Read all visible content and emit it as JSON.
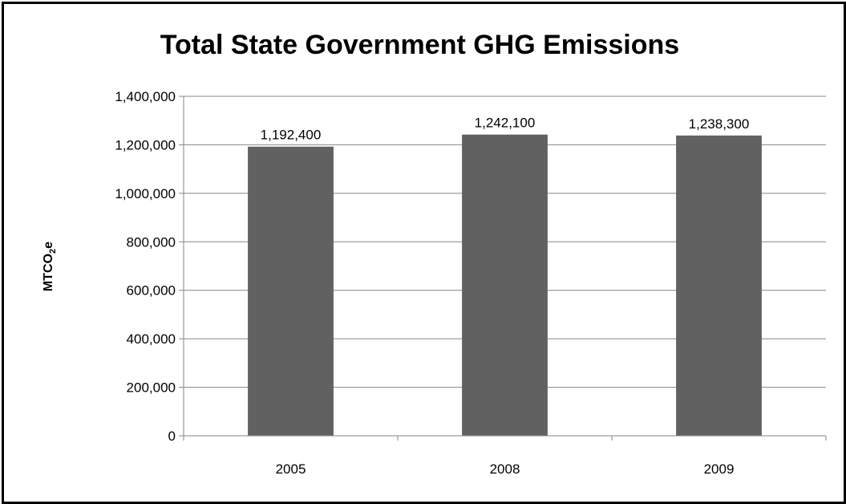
{
  "chart_data": {
    "type": "bar",
    "title": "Total State Government GHG Emissions",
    "ylabel_main": "MTCO",
    "ylabel_sub": "2",
    "ylabel_tail": "e",
    "categories": [
      "2005",
      "2008",
      "2009"
    ],
    "values": [
      1192400,
      1242100,
      1238300
    ],
    "value_labels": [
      "1,192,400",
      "1,242,100",
      "1,238,300"
    ],
    "ylim": [
      0,
      1400000
    ],
    "yticks": [
      0,
      200000,
      400000,
      600000,
      800000,
      1000000,
      1200000,
      1400000
    ],
    "ytick_labels": [
      "0",
      "200,000",
      "400,000",
      "600,000",
      "800,000",
      "1,000,000",
      "1,200,000",
      "1,400,000"
    ],
    "grid": true,
    "legend": "none",
    "bar_color": "#616161",
    "grid_color": "#868686"
  }
}
